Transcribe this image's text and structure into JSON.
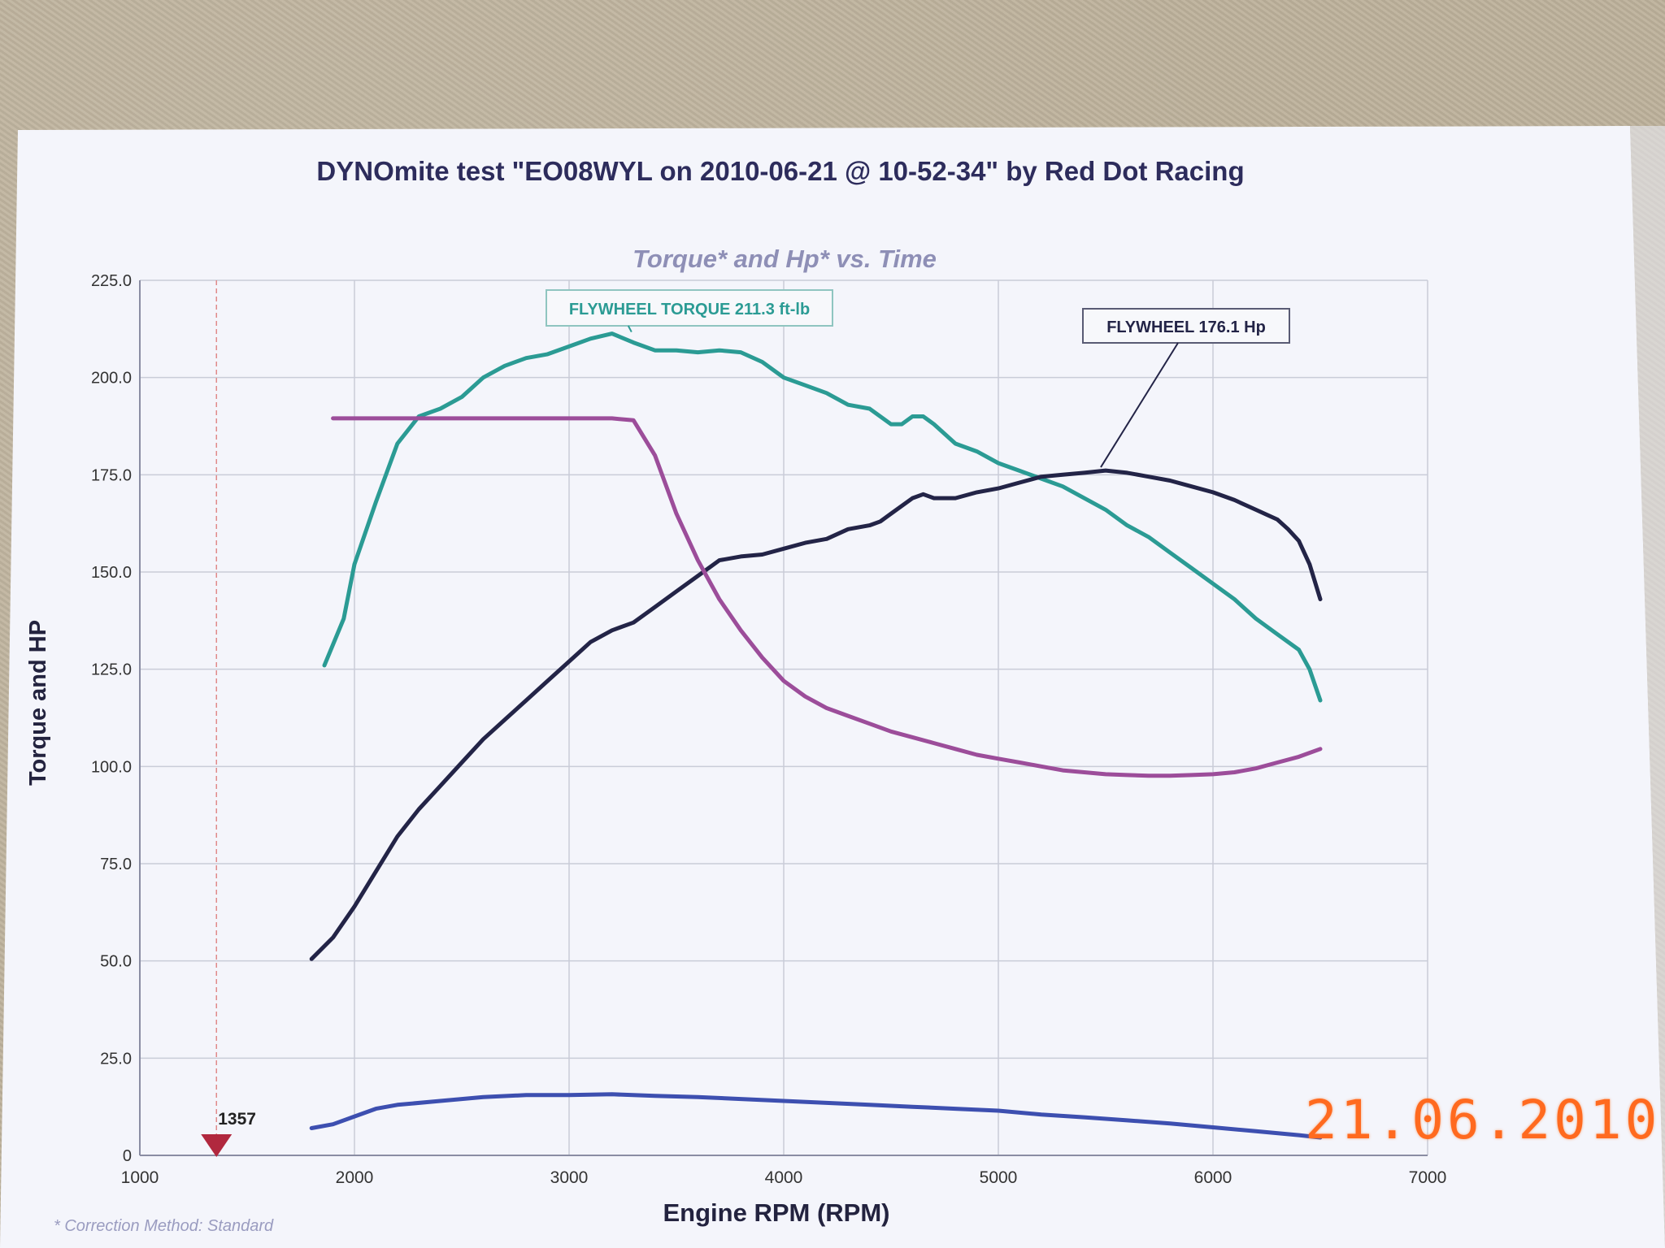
{
  "page": {
    "title": "DYNOmite test \"EO08WYL on 2010-06-21 @ 10-52-34\" by Red Dot Racing",
    "date_stamp": "21.06.2010",
    "footnote": "* Correction Method: Standard"
  },
  "chart_data": {
    "type": "line",
    "title": "DYNOmite test \"EO08WYL on 2010-06-21 @ 10-52-34\" by Red Dot Racing",
    "subtitle": "Torque* and Hp* vs. Time",
    "xlabel": "Engine RPM (RPM)",
    "ylabel": "Torque and HP",
    "xlim": [
      1000,
      7000
    ],
    "ylim": [
      0,
      225
    ],
    "x_ticks": [
      1000,
      2000,
      3000,
      4000,
      5000,
      6000,
      7000
    ],
    "x_tick_labels": [
      "1000",
      "2000",
      "3000",
      "4000",
      "5000",
      "6000",
      "7000"
    ],
    "y_ticks": [
      0,
      25,
      50,
      75,
      100,
      125,
      150,
      175,
      200,
      225
    ],
    "y_tick_labels": [
      "0",
      "25.0",
      "50.0",
      "75.0",
      "100.0",
      "125.0",
      "150.0",
      "175.0",
      "200.0",
      "225.0"
    ],
    "grid": true,
    "series": [
      {
        "color": "#2b9b94",
        "points": [
          [
            1860,
            126
          ],
          [
            1950,
            138
          ],
          [
            2000,
            152
          ],
          [
            2100,
            168
          ],
          [
            2200,
            183
          ],
          [
            2300,
            190
          ],
          [
            2400,
            192
          ],
          [
            2500,
            195
          ],
          [
            2600,
            200
          ],
          [
            2700,
            203
          ],
          [
            2800,
            205
          ],
          [
            2900,
            206
          ],
          [
            3000,
            208
          ],
          [
            3100,
            210
          ],
          [
            3200,
            211.3
          ],
          [
            3300,
            209
          ],
          [
            3400,
            207
          ],
          [
            3500,
            207
          ],
          [
            3600,
            206.5
          ],
          [
            3700,
            207
          ],
          [
            3800,
            206.5
          ],
          [
            3900,
            204
          ],
          [
            4000,
            200
          ],
          [
            4100,
            198
          ],
          [
            4200,
            196
          ],
          [
            4300,
            193
          ],
          [
            4400,
            192
          ],
          [
            4500,
            188
          ],
          [
            4550,
            188
          ],
          [
            4600,
            190
          ],
          [
            4650,
            190
          ],
          [
            4700,
            188
          ],
          [
            4800,
            183
          ],
          [
            4900,
            181
          ],
          [
            5000,
            178
          ],
          [
            5100,
            176
          ],
          [
            5200,
            174
          ],
          [
            5300,
            172
          ],
          [
            5400,
            169
          ],
          [
            5500,
            166
          ],
          [
            5600,
            162
          ],
          [
            5700,
            159
          ],
          [
            5800,
            155
          ],
          [
            5900,
            151
          ],
          [
            6000,
            147
          ],
          [
            6100,
            143
          ],
          [
            6200,
            138
          ],
          [
            6300,
            134
          ],
          [
            6400,
            130
          ],
          [
            6450,
            125
          ],
          [
            6500,
            117
          ]
        ]
      },
      {
        "color": "#232447",
        "points": [
          [
            1800,
            50.5
          ],
          [
            1900,
            56
          ],
          [
            2000,
            64
          ],
          [
            2100,
            73
          ],
          [
            2200,
            82
          ],
          [
            2300,
            89
          ],
          [
            2400,
            95
          ],
          [
            2500,
            101
          ],
          [
            2600,
            107
          ],
          [
            2700,
            112
          ],
          [
            2800,
            117
          ],
          [
            2900,
            122
          ],
          [
            3000,
            127
          ],
          [
            3100,
            132
          ],
          [
            3200,
            135
          ],
          [
            3300,
            137
          ],
          [
            3400,
            141
          ],
          [
            3500,
            145
          ],
          [
            3600,
            149
          ],
          [
            3700,
            153
          ],
          [
            3800,
            154
          ],
          [
            3900,
            154.5
          ],
          [
            4000,
            156
          ],
          [
            4100,
            157.5
          ],
          [
            4200,
            158.5
          ],
          [
            4300,
            161
          ],
          [
            4400,
            162
          ],
          [
            4450,
            163
          ],
          [
            4500,
            165
          ],
          [
            4600,
            169
          ],
          [
            4650,
            170
          ],
          [
            4700,
            169
          ],
          [
            4800,
            169
          ],
          [
            4900,
            170.5
          ],
          [
            5000,
            171.5
          ],
          [
            5100,
            173
          ],
          [
            5200,
            174.5
          ],
          [
            5300,
            175
          ],
          [
            5400,
            175.5
          ],
          [
            5500,
            176.1
          ],
          [
            5600,
            175.5
          ],
          [
            5700,
            174.5
          ],
          [
            5800,
            173.5
          ],
          [
            5900,
            172
          ],
          [
            6000,
            170.5
          ],
          [
            6100,
            168.5
          ],
          [
            6200,
            166
          ],
          [
            6300,
            163.5
          ],
          [
            6350,
            161
          ],
          [
            6400,
            158
          ],
          [
            6450,
            152
          ],
          [
            6500,
            143
          ]
        ]
      },
      {
        "color": "#9c4d9a",
        "points": [
          [
            1900,
            189.5
          ],
          [
            2500,
            189.5
          ],
          [
            3000,
            189.5
          ],
          [
            3200,
            189.5
          ],
          [
            3300,
            189
          ],
          [
            3400,
            180
          ],
          [
            3500,
            165
          ],
          [
            3600,
            153
          ],
          [
            3700,
            143
          ],
          [
            3800,
            135
          ],
          [
            3900,
            128
          ],
          [
            4000,
            122
          ],
          [
            4100,
            118
          ],
          [
            4200,
            115
          ],
          [
            4300,
            113
          ],
          [
            4400,
            111
          ],
          [
            4500,
            109
          ],
          [
            4600,
            107.5
          ],
          [
            4700,
            106
          ],
          [
            4800,
            104.5
          ],
          [
            4900,
            103
          ],
          [
            5000,
            102
          ],
          [
            5100,
            101
          ],
          [
            5200,
            100
          ],
          [
            5300,
            99
          ],
          [
            5400,
            98.5
          ],
          [
            5500,
            98
          ],
          [
            5600,
            97.8
          ],
          [
            5700,
            97.6
          ],
          [
            5800,
            97.6
          ],
          [
            5900,
            97.8
          ],
          [
            6000,
            98
          ],
          [
            6100,
            98.5
          ],
          [
            6200,
            99.5
          ],
          [
            6300,
            101
          ],
          [
            6400,
            102.5
          ],
          [
            6500,
            104.5
          ]
        ]
      },
      {
        "color": "#3d4fb0",
        "points": [
          [
            1800,
            7
          ],
          [
            1900,
            8
          ],
          [
            2000,
            10
          ],
          [
            2100,
            12
          ],
          [
            2200,
            13
          ],
          [
            2400,
            14
          ],
          [
            2600,
            15
          ],
          [
            2800,
            15.5
          ],
          [
            3000,
            15.5
          ],
          [
            3200,
            15.7
          ],
          [
            3400,
            15.3
          ],
          [
            3600,
            15
          ],
          [
            3800,
            14.5
          ],
          [
            4000,
            14
          ],
          [
            4200,
            13.5
          ],
          [
            4400,
            13
          ],
          [
            4600,
            12.5
          ],
          [
            4800,
            12
          ],
          [
            5000,
            11.5
          ],
          [
            5200,
            10.5
          ],
          [
            5400,
            9.8
          ],
          [
            5600,
            9
          ],
          [
            5800,
            8.2
          ],
          [
            6000,
            7.2
          ],
          [
            6200,
            6.2
          ],
          [
            6400,
            5.2
          ],
          [
            6500,
            4.6
          ]
        ]
      }
    ],
    "annotations": [
      {
        "text": "FLYWHEEL TORQUE 211.3 ft-lb",
        "color": "#2b9b94",
        "x": 3200,
        "y": 211.3
      },
      {
        "text": "FLYWHEEL 176.1 Hp",
        "color": "#232447",
        "x": 5500,
        "y": 176.1
      }
    ],
    "marker": {
      "label": "1357",
      "x": 1357,
      "y": 0,
      "color": "#b1283e"
    }
  }
}
